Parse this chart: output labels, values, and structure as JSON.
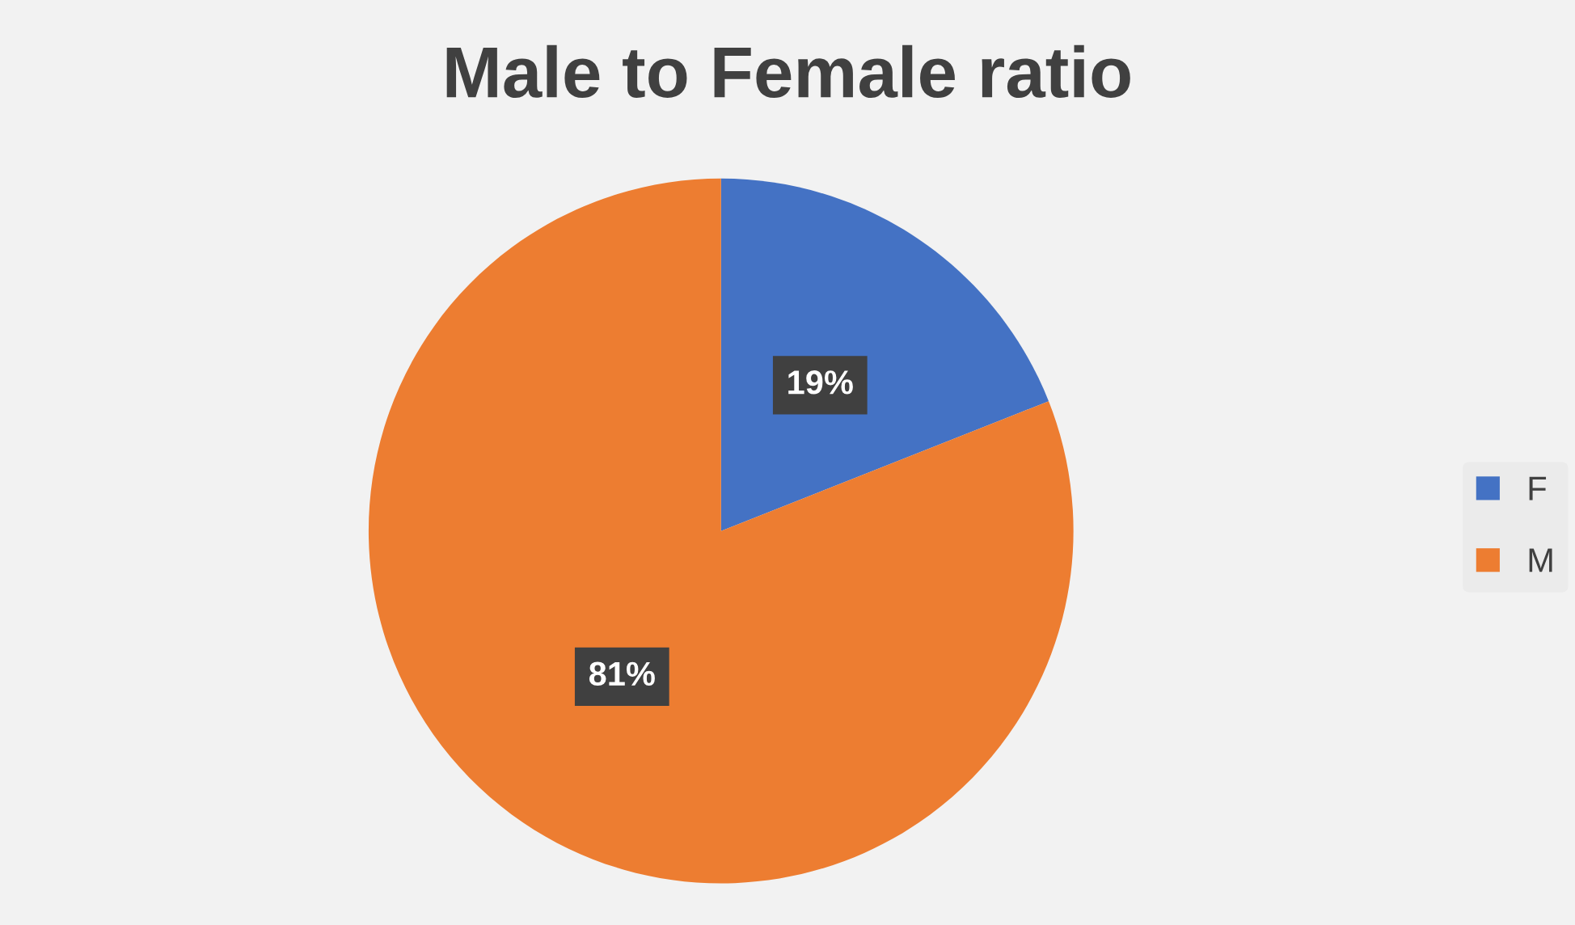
{
  "chart_data": {
    "type": "pie",
    "title": "Male to Female ratio",
    "categories": [
      "F",
      "M"
    ],
    "values": [
      19,
      81
    ],
    "colors": [
      "#4472c4",
      "#ed7d31"
    ],
    "value_labels": [
      "19%",
      "81%"
    ],
    "legend": "right"
  }
}
